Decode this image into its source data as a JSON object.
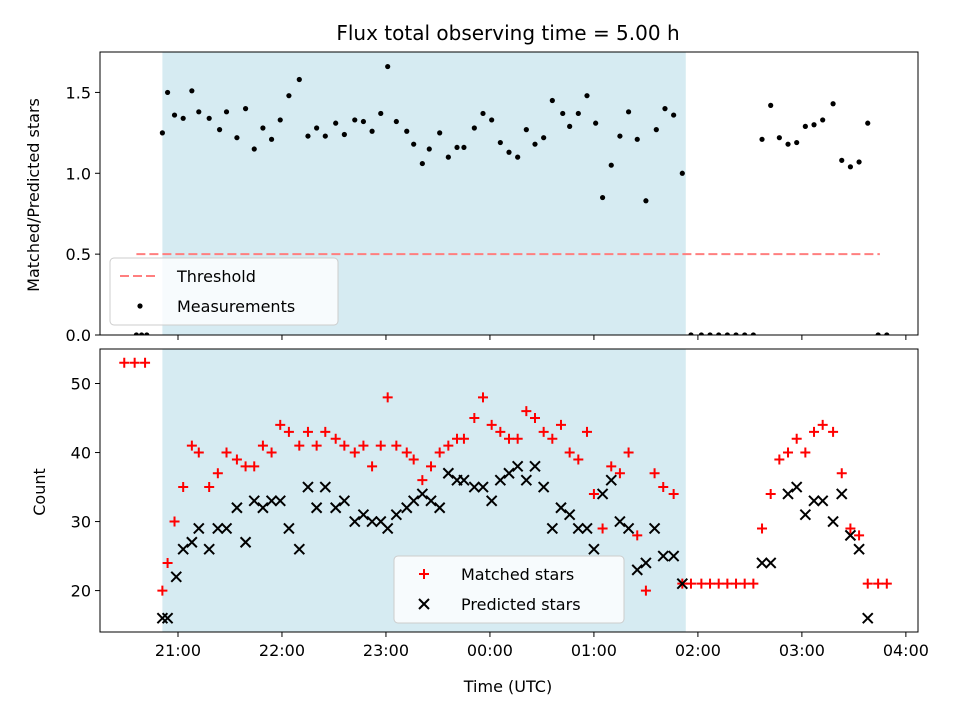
{
  "chart_data": [
    {
      "type": "scatter",
      "title": "Flux total observing time = 5.00 h",
      "ylabel": "Matched/Predicted stars",
      "xlabel": "",
      "ylim": [
        0,
        1.75
      ],
      "xlim": [
        "20:15",
        "04:07"
      ],
      "yticks": [
        "0.0",
        "0.5",
        "1.0",
        "1.5"
      ],
      "shaded_span": [
        "20:51",
        "01:53"
      ],
      "shade_color": "#add8e6",
      "threshold": {
        "name": "Threshold",
        "value": 0.5,
        "x_start": "20:36",
        "x_end": "03:45",
        "color": "#ff7f7f"
      },
      "legend": {
        "position": "lower-left",
        "entries": [
          "Threshold",
          "Measurements"
        ]
      },
      "series": [
        {
          "name": "Measurements",
          "color": "#000000",
          "points": [
            [
              "20:36",
              0
            ],
            [
              "20:39",
              0
            ],
            [
              "20:42",
              0
            ],
            [
              "20:51",
              1.25
            ],
            [
              "20:54",
              1.5
            ],
            [
              "20:58",
              1.36
            ],
            [
              "21:03",
              1.34
            ],
            [
              "21:08",
              1.51
            ],
            [
              "21:12",
              1.38
            ],
            [
              "21:18",
              1.34
            ],
            [
              "21:24",
              1.27
            ],
            [
              "21:28",
              1.38
            ],
            [
              "21:34",
              1.22
            ],
            [
              "21:39",
              1.4
            ],
            [
              "21:44",
              1.15
            ],
            [
              "21:49",
              1.28
            ],
            [
              "21:54",
              1.21
            ],
            [
              "21:59",
              1.33
            ],
            [
              "22:04",
              1.48
            ],
            [
              "22:10",
              1.58
            ],
            [
              "22:15",
              1.23
            ],
            [
              "22:20",
              1.28
            ],
            [
              "22:25",
              1.23
            ],
            [
              "22:31",
              1.31
            ],
            [
              "22:36",
              1.24
            ],
            [
              "22:42",
              1.33
            ],
            [
              "22:47",
              1.32
            ],
            [
              "22:52",
              1.26
            ],
            [
              "22:57",
              1.37
            ],
            [
              "23:01",
              1.66
            ],
            [
              "23:06",
              1.32
            ],
            [
              "23:12",
              1.26
            ],
            [
              "23:16",
              1.18
            ],
            [
              "23:21",
              1.06
            ],
            [
              "23:25",
              1.15
            ],
            [
              "23:31",
              1.25
            ],
            [
              "23:36",
              1.1
            ],
            [
              "23:41",
              1.16
            ],
            [
              "23:45",
              1.16
            ],
            [
              "23:51",
              1.28
            ],
            [
              "23:56",
              1.37
            ],
            [
              "00:01",
              1.33
            ],
            [
              "00:06",
              1.19
            ],
            [
              "00:11",
              1.13
            ],
            [
              "00:16",
              1.1
            ],
            [
              "00:21",
              1.27
            ],
            [
              "00:26",
              1.18
            ],
            [
              "00:31",
              1.22
            ],
            [
              "00:36",
              1.45
            ],
            [
              "00:42",
              1.37
            ],
            [
              "00:46",
              1.29
            ],
            [
              "00:51",
              1.37
            ],
            [
              "00:56",
              1.48
            ],
            [
              "01:01",
              1.31
            ],
            [
              "01:05",
              0.85
            ],
            [
              "01:10",
              1.05
            ],
            [
              "01:15",
              1.23
            ],
            [
              "01:20",
              1.38
            ],
            [
              "01:25",
              1.21
            ],
            [
              "01:30",
              0.83
            ],
            [
              "01:36",
              1.27
            ],
            [
              "01:41",
              1.4
            ],
            [
              "01:46",
              1.36
            ],
            [
              "01:51",
              1.0
            ],
            [
              "01:56",
              0
            ],
            [
              "02:02",
              0
            ],
            [
              "02:07",
              0
            ],
            [
              "02:12",
              0
            ],
            [
              "02:17",
              0
            ],
            [
              "02:22",
              0
            ],
            [
              "02:27",
              0
            ],
            [
              "02:32",
              0
            ],
            [
              "02:37",
              1.21
            ],
            [
              "02:42",
              1.42
            ],
            [
              "02:47",
              1.22
            ],
            [
              "02:52",
              1.18
            ],
            [
              "02:57",
              1.19
            ],
            [
              "03:02",
              1.29
            ],
            [
              "03:07",
              1.3
            ],
            [
              "03:12",
              1.33
            ],
            [
              "03:18",
              1.43
            ],
            [
              "03:23",
              1.08
            ],
            [
              "03:28",
              1.04
            ],
            [
              "03:33",
              1.07
            ],
            [
              "03:38",
              1.31
            ],
            [
              "03:44",
              0
            ],
            [
              "03:49",
              0
            ]
          ]
        }
      ]
    },
    {
      "type": "scatter",
      "title": "",
      "xlabel": "Time (UTC)",
      "ylabel": "Count",
      "ylim": [
        14,
        55
      ],
      "xlim": [
        "20:15",
        "04:07"
      ],
      "yticks": [
        "20",
        "30",
        "40",
        "50"
      ],
      "xticks": [
        "21:00",
        "22:00",
        "23:00",
        "00:00",
        "01:00",
        "02:00",
        "03:00",
        "04:00"
      ],
      "shaded_span": [
        "20:51",
        "01:53"
      ],
      "shade_color": "#add8e6",
      "legend": {
        "position": "lower-center",
        "entries": [
          "Matched stars",
          "Predicted stars"
        ]
      },
      "series": [
        {
          "name": "Matched stars",
          "color": "#ff0000",
          "points": [
            [
              "20:29",
              53
            ],
            [
              "20:35",
              53
            ],
            [
              "20:41",
              53
            ],
            [
              "20:51",
              20
            ],
            [
              "20:54",
              24
            ],
            [
              "20:58",
              30
            ],
            [
              "21:03",
              35
            ],
            [
              "21:08",
              41
            ],
            [
              "21:12",
              40
            ],
            [
              "21:18",
              35
            ],
            [
              "21:23",
              37
            ],
            [
              "21:28",
              40
            ],
            [
              "21:34",
              39
            ],
            [
              "21:39",
              38
            ],
            [
              "21:44",
              38
            ],
            [
              "21:49",
              41
            ],
            [
              "21:54",
              40
            ],
            [
              "21:59",
              44
            ],
            [
              "22:04",
              43
            ],
            [
              "22:10",
              41
            ],
            [
              "22:15",
              43
            ],
            [
              "22:20",
              41
            ],
            [
              "22:25",
              43
            ],
            [
              "22:31",
              42
            ],
            [
              "22:36",
              41
            ],
            [
              "22:42",
              40
            ],
            [
              "22:47",
              41
            ],
            [
              "22:52",
              38
            ],
            [
              "22:57",
              41
            ],
            [
              "23:01",
              48
            ],
            [
              "23:06",
              41
            ],
            [
              "23:12",
              40
            ],
            [
              "23:16",
              39
            ],
            [
              "23:21",
              36
            ],
            [
              "23:26",
              38
            ],
            [
              "23:31",
              40
            ],
            [
              "23:36",
              41
            ],
            [
              "23:41",
              42
            ],
            [
              "23:45",
              42
            ],
            [
              "23:51",
              45
            ],
            [
              "23:56",
              48
            ],
            [
              "00:01",
              44
            ],
            [
              "00:06",
              43
            ],
            [
              "00:11",
              42
            ],
            [
              "00:16",
              42
            ],
            [
              "00:21",
              46
            ],
            [
              "00:26",
              45
            ],
            [
              "00:31",
              43
            ],
            [
              "00:36",
              42
            ],
            [
              "00:41",
              44
            ],
            [
              "00:46",
              40
            ],
            [
              "00:51",
              39
            ],
            [
              "00:56",
              43
            ],
            [
              "01:00",
              34
            ],
            [
              "01:05",
              29
            ],
            [
              "01:10",
              38
            ],
            [
              "01:15",
              37
            ],
            [
              "01:20",
              40
            ],
            [
              "01:25",
              28
            ],
            [
              "01:30",
              20
            ],
            [
              "01:35",
              37
            ],
            [
              "01:40",
              35
            ],
            [
              "01:46",
              34
            ],
            [
              "01:51",
              21
            ],
            [
              "01:56",
              21
            ],
            [
              "02:02",
              21
            ],
            [
              "02:07",
              21
            ],
            [
              "02:12",
              21
            ],
            [
              "02:17",
              21
            ],
            [
              "02:22",
              21
            ],
            [
              "02:27",
              21
            ],
            [
              "02:32",
              21
            ],
            [
              "02:37",
              29
            ],
            [
              "02:42",
              34
            ],
            [
              "02:47",
              39
            ],
            [
              "02:52",
              40
            ],
            [
              "02:57",
              42
            ],
            [
              "03:02",
              40
            ],
            [
              "03:07",
              43
            ],
            [
              "03:12",
              44
            ],
            [
              "03:18",
              43
            ],
            [
              "03:23",
              37
            ],
            [
              "03:28",
              29
            ],
            [
              "03:33",
              28
            ],
            [
              "03:38",
              21
            ],
            [
              "03:44",
              21
            ],
            [
              "03:49",
              21
            ]
          ]
        },
        {
          "name": "Predicted stars",
          "color": "#000000",
          "points": [
            [
              "20:51",
              16
            ],
            [
              "20:54",
              16
            ],
            [
              "20:59",
              22
            ],
            [
              "21:03",
              26
            ],
            [
              "21:08",
              27
            ],
            [
              "21:12",
              29
            ],
            [
              "21:18",
              26
            ],
            [
              "21:23",
              29
            ],
            [
              "21:28",
              29
            ],
            [
              "21:34",
              32
            ],
            [
              "21:39",
              27
            ],
            [
              "21:44",
              33
            ],
            [
              "21:49",
              32
            ],
            [
              "21:54",
              33
            ],
            [
              "21:59",
              33
            ],
            [
              "22:04",
              29
            ],
            [
              "22:10",
              26
            ],
            [
              "22:15",
              35
            ],
            [
              "22:20",
              32
            ],
            [
              "22:25",
              35
            ],
            [
              "22:31",
              32
            ],
            [
              "22:36",
              33
            ],
            [
              "22:42",
              30
            ],
            [
              "22:47",
              31
            ],
            [
              "22:52",
              30
            ],
            [
              "22:57",
              30
            ],
            [
              "23:01",
              29
            ],
            [
              "23:06",
              31
            ],
            [
              "23:12",
              32
            ],
            [
              "23:16",
              33
            ],
            [
              "23:21",
              34
            ],
            [
              "23:26",
              33
            ],
            [
              "23:31",
              32
            ],
            [
              "23:36",
              37
            ],
            [
              "23:41",
              36
            ],
            [
              "23:45",
              36
            ],
            [
              "23:51",
              35
            ],
            [
              "23:56",
              35
            ],
            [
              "00:01",
              33
            ],
            [
              "00:06",
              36
            ],
            [
              "00:11",
              37
            ],
            [
              "00:16",
              38
            ],
            [
              "00:21",
              36
            ],
            [
              "00:26",
              38
            ],
            [
              "00:31",
              35
            ],
            [
              "00:36",
              29
            ],
            [
              "00:41",
              32
            ],
            [
              "00:46",
              31
            ],
            [
              "00:51",
              29
            ],
            [
              "00:56",
              29
            ],
            [
              "01:00",
              26
            ],
            [
              "01:05",
              34
            ],
            [
              "01:10",
              36
            ],
            [
              "01:15",
              30
            ],
            [
              "01:20",
              29
            ],
            [
              "01:25",
              23
            ],
            [
              "01:30",
              24
            ],
            [
              "01:35",
              29
            ],
            [
              "01:40",
              25
            ],
            [
              "01:46",
              25
            ],
            [
              "01:51",
              21
            ],
            [
              "02:37",
              24
            ],
            [
              "02:42",
              24
            ],
            [
              "02:52",
              34
            ],
            [
              "02:57",
              35
            ],
            [
              "03:02",
              31
            ],
            [
              "03:07",
              33
            ],
            [
              "03:12",
              33
            ],
            [
              "03:18",
              30
            ],
            [
              "03:23",
              34
            ],
            [
              "03:28",
              28
            ],
            [
              "03:33",
              26
            ],
            [
              "03:38",
              16
            ]
          ]
        }
      ]
    }
  ]
}
